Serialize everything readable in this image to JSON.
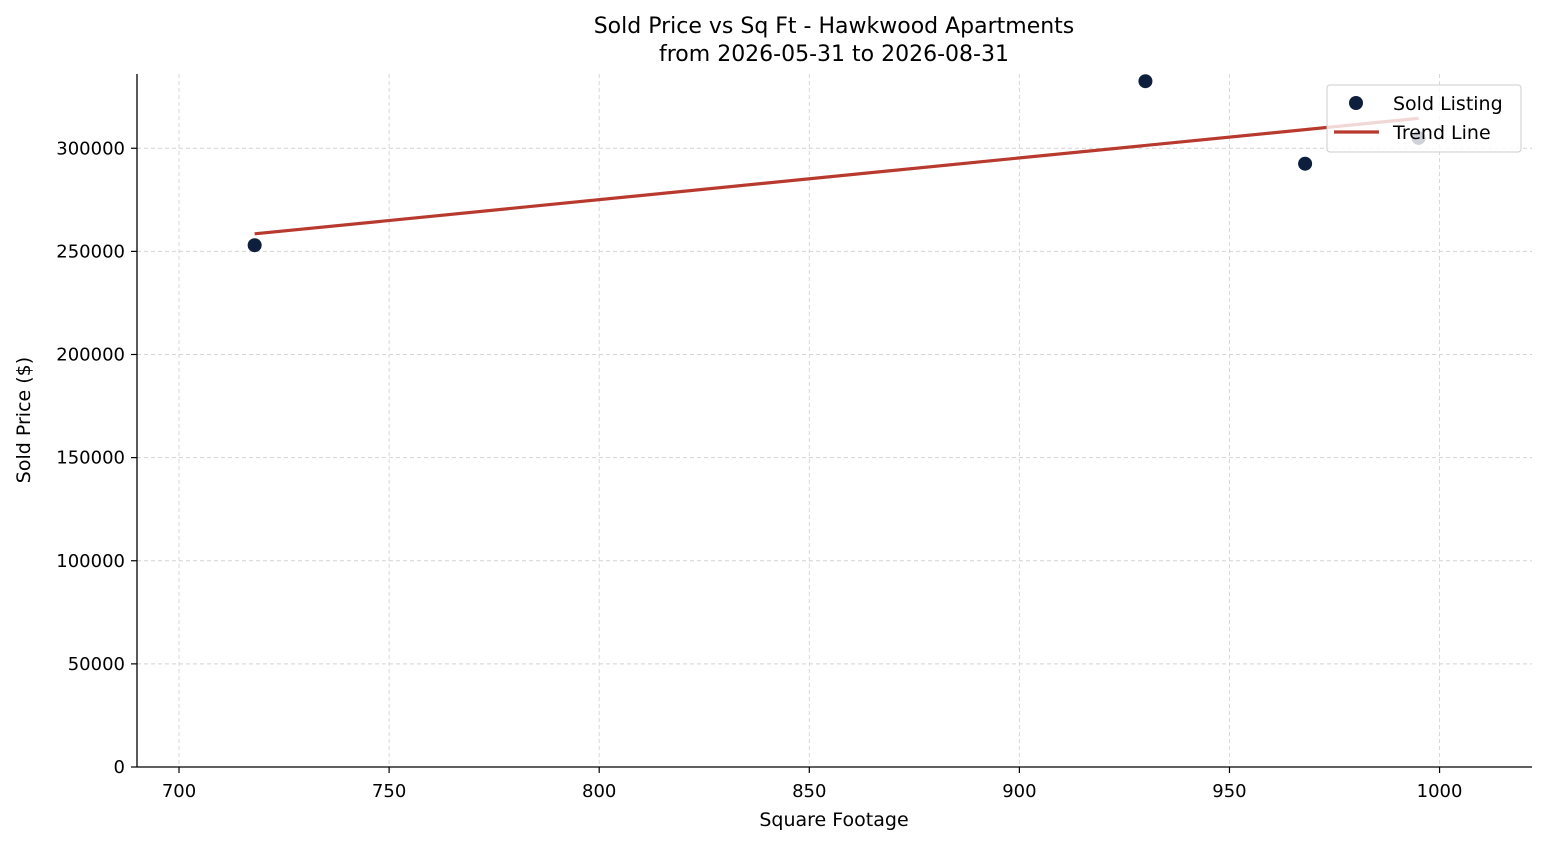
{
  "chart_data": {
    "type": "scatter",
    "title": "Sold Price vs Sq Ft - Hawkwood Apartments",
    "subtitle": "from 2026-05-31 to 2026-08-31",
    "xlabel": "Square Footage",
    "ylabel": "Sold Price ($)",
    "xlim": [
      690,
      1022
    ],
    "ylim": [
      0,
      336000
    ],
    "xticks": [
      700,
      750,
      800,
      850,
      900,
      950,
      1000
    ],
    "yticks": [
      0,
      50000,
      100000,
      150000,
      200000,
      250000,
      300000
    ],
    "xtick_labels": [
      "700",
      "750",
      "800",
      "850",
      "900",
      "950",
      "1000"
    ],
    "ytick_labels": [
      "0",
      "50000",
      "100000",
      "150000",
      "200000",
      "250000",
      "300000"
    ],
    "grid": true,
    "legend_position": "top-right",
    "series": [
      {
        "name": "Sold Listing",
        "kind": "scatter",
        "color": "#0d1f3c",
        "points": [
          {
            "x": 718,
            "y": 253000
          },
          {
            "x": 930,
            "y": 332500
          },
          {
            "x": 968,
            "y": 292500
          },
          {
            "x": 995,
            "y": 305000
          }
        ]
      },
      {
        "name": "Trend Line",
        "kind": "line",
        "color": "#b83a2e",
        "points": [
          {
            "x": 718,
            "y": 258500
          },
          {
            "x": 995,
            "y": 314500
          }
        ]
      }
    ]
  }
}
